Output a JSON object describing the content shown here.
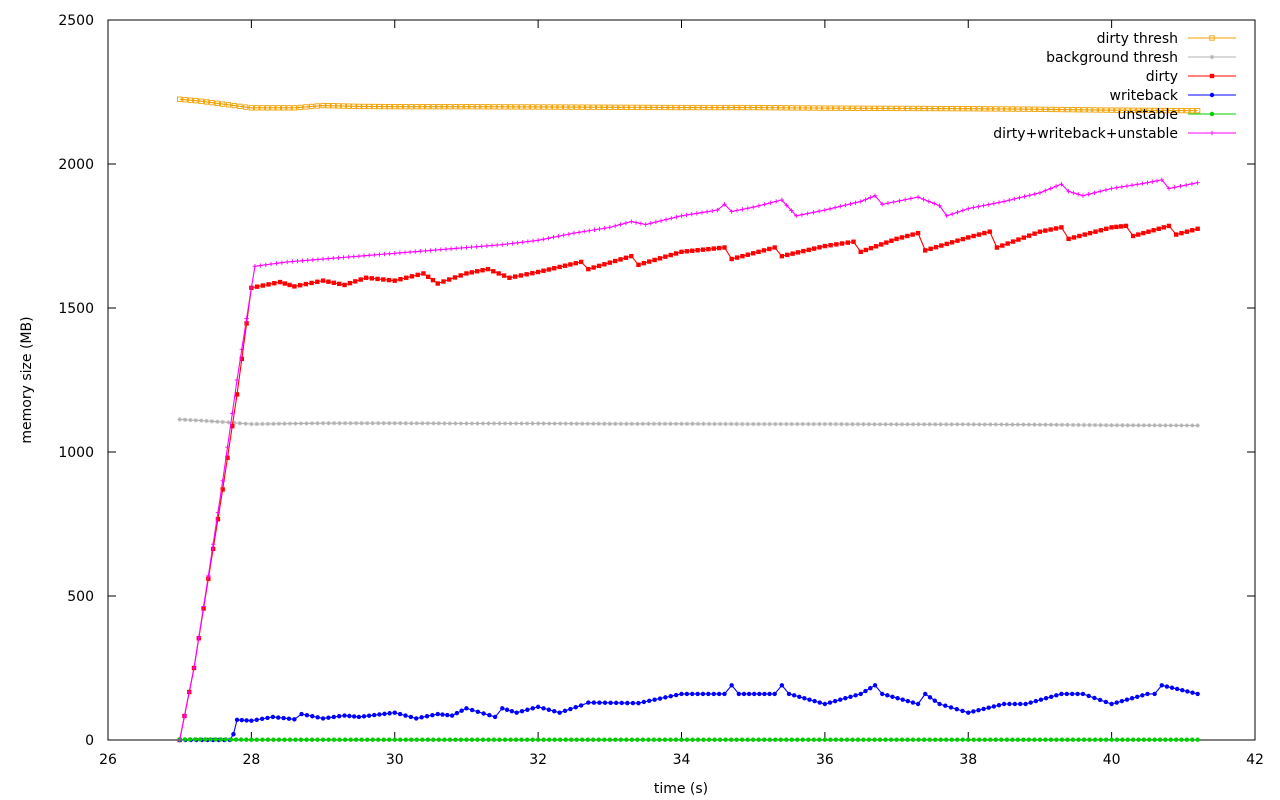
{
  "chart_data": {
    "type": "line",
    "title": "",
    "xlabel": "time (s)",
    "ylabel": "memory size (MB)",
    "xlim": [
      26,
      42
    ],
    "ylim": [
      0,
      2500
    ],
    "xticks": [
      26,
      28,
      30,
      32,
      34,
      36,
      38,
      40,
      42
    ],
    "yticks": [
      0,
      500,
      1000,
      1500,
      2000,
      2500
    ],
    "grid": false,
    "legend": "top-right",
    "series": [
      {
        "name": "dirty thresh",
        "color": "#f0a000",
        "marker": "square-open",
        "x": [
          27.0,
          27.3,
          27.6,
          28.0,
          28.6,
          29.0,
          29.5,
          30,
          31,
          32,
          33,
          34,
          35,
          36,
          37,
          38,
          39,
          40,
          41.2
        ],
        "y": [
          2225,
          2218,
          2208,
          2195,
          2195,
          2203,
          2200,
          2199,
          2199,
          2198,
          2197,
          2196,
          2196,
          2194,
          2193,
          2192,
          2190,
          2187,
          2185
        ]
      },
      {
        "name": "background thresh",
        "color": "#b0b0b0",
        "marker": "star",
        "x": [
          27.0,
          27.3,
          27.6,
          28.0,
          29,
          30,
          31,
          32,
          33,
          34,
          35,
          36,
          37,
          38,
          39,
          40,
          41.2
        ],
        "y": [
          1113,
          1109,
          1104,
          1097,
          1100,
          1100,
          1099,
          1099,
          1098,
          1098,
          1097,
          1097,
          1096,
          1096,
          1095,
          1093,
          1092
        ]
      },
      {
        "name": "dirty",
        "color": "#ff0000",
        "marker": "square-filled",
        "x": [
          27.0,
          27.2,
          27.4,
          27.6,
          27.8,
          28.0,
          28.4,
          28.6,
          29.0,
          29.3,
          29.6,
          30.0,
          30.4,
          30.6,
          31.0,
          31.3,
          31.6,
          32.0,
          32.6,
          32.7,
          33.3,
          33.4,
          34.0,
          34.6,
          34.7,
          35.3,
          35.4,
          36.0,
          36.4,
          36.5,
          37.0,
          37.3,
          37.4,
          38.0,
          38.3,
          38.4,
          39.0,
          39.3,
          39.4,
          40.0,
          40.2,
          40.3,
          40.8,
          40.9,
          41.2
        ],
        "y": [
          0,
          250,
          560,
          870,
          1200,
          1570,
          1590,
          1575,
          1595,
          1580,
          1605,
          1595,
          1620,
          1585,
          1620,
          1635,
          1605,
          1625,
          1660,
          1635,
          1680,
          1650,
          1695,
          1710,
          1670,
          1710,
          1680,
          1715,
          1730,
          1695,
          1740,
          1760,
          1700,
          1745,
          1765,
          1710,
          1765,
          1780,
          1740,
          1780,
          1785,
          1750,
          1785,
          1755,
          1775
        ]
      },
      {
        "name": "writeback",
        "color": "#0000ff",
        "marker": "circle-filled",
        "x": [
          27.0,
          27.7,
          27.75,
          27.8,
          28.0,
          28.3,
          28.6,
          28.7,
          29.0,
          29.3,
          29.5,
          30.0,
          30.3,
          30.6,
          30.8,
          31.0,
          31.4,
          31.5,
          31.7,
          32.0,
          32.3,
          32.6,
          32.7,
          33.4,
          34.0,
          34.6,
          34.7,
          34.8,
          35.3,
          35.4,
          35.5,
          36.0,
          36.5,
          36.7,
          36.8,
          37.3,
          37.4,
          37.6,
          38.0,
          38.5,
          38.8,
          39.3,
          39.6,
          40.0,
          40.5,
          40.6,
          40.7,
          41.2
        ],
        "y": [
          0,
          0,
          20,
          70,
          67,
          80,
          72,
          90,
          75,
          85,
          80,
          95,
          75,
          90,
          85,
          110,
          80,
          110,
          95,
          115,
          95,
          120,
          130,
          128,
          160,
          160,
          190,
          160,
          160,
          190,
          160,
          125,
          160,
          190,
          160,
          125,
          160,
          125,
          95,
          125,
          125,
          160,
          160,
          125,
          160,
          160,
          190,
          160
        ]
      },
      {
        "name": "unstable",
        "color": "#00cc00",
        "marker": "circle-filled",
        "x": [
          27.0,
          27.5,
          28.0,
          29,
          30,
          31,
          32,
          33,
          34,
          35,
          36,
          37,
          38,
          39,
          40,
          41.2
        ],
        "y": [
          2,
          2,
          1,
          1,
          1,
          1,
          1,
          1,
          1,
          1,
          1,
          1,
          1,
          1,
          1,
          1
        ]
      },
      {
        "name": "dirty+writeback+unstable",
        "color": "#ff00ff",
        "marker": "plus",
        "x": [
          27.0,
          27.2,
          27.4,
          27.6,
          27.8,
          28.0,
          28.05,
          28.5,
          29.0,
          29.5,
          30.0,
          30.5,
          31.0,
          31.5,
          32.0,
          32.5,
          33.0,
          33.3,
          33.5,
          34.0,
          34.5,
          34.6,
          34.7,
          35.0,
          35.4,
          35.6,
          36.0,
          36.5,
          36.7,
          36.8,
          37.2,
          37.3,
          37.6,
          37.7,
          38.0,
          38.5,
          39.0,
          39.3,
          39.4,
          39.6,
          40.0,
          40.5,
          40.7,
          40.8,
          41.2
        ],
        "y": [
          0,
          250,
          570,
          900,
          1250,
          1570,
          1645,
          1660,
          1670,
          1680,
          1690,
          1700,
          1710,
          1720,
          1735,
          1760,
          1780,
          1800,
          1790,
          1820,
          1840,
          1860,
          1835,
          1850,
          1875,
          1820,
          1840,
          1870,
          1890,
          1860,
          1880,
          1885,
          1855,
          1820,
          1845,
          1870,
          1900,
          1930,
          1905,
          1890,
          1915,
          1935,
          1945,
          1915,
          1935
        ]
      }
    ]
  }
}
